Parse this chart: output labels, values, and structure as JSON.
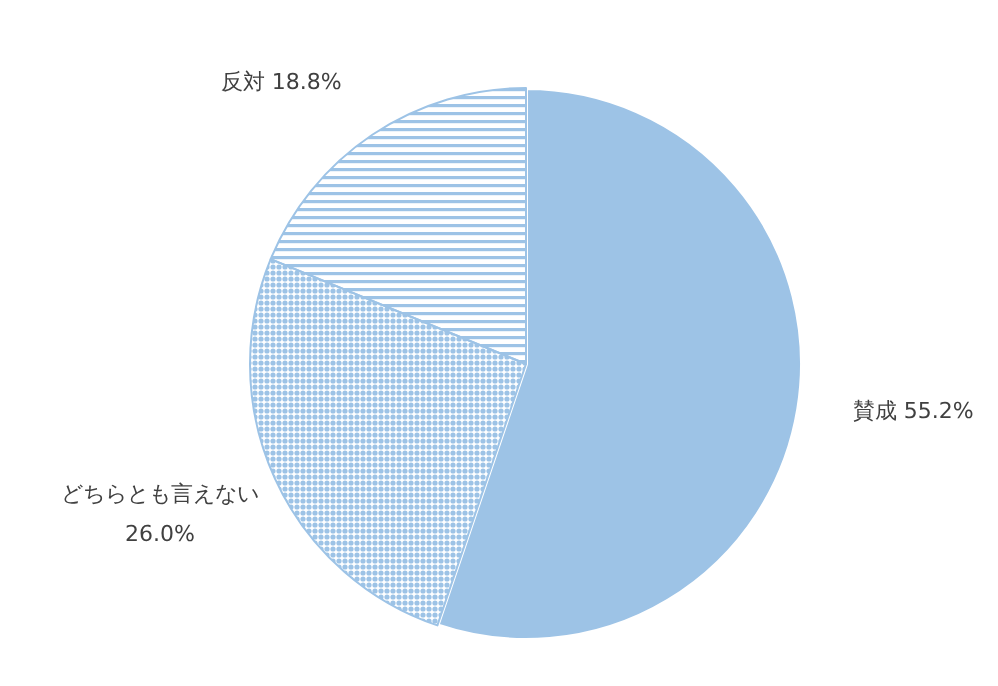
{
  "chart_data": {
    "type": "pie",
    "categories": [
      "賛成",
      "どちらとも言えない",
      "反対"
    ],
    "values": [
      55.2,
      26.0,
      18.8
    ],
    "value_labels": [
      "55.2%",
      "26.0%",
      "18.8%"
    ],
    "colors": [
      "#9dc3e6",
      "#9dc3e6",
      "#9dc3e6"
    ]
  }
}
